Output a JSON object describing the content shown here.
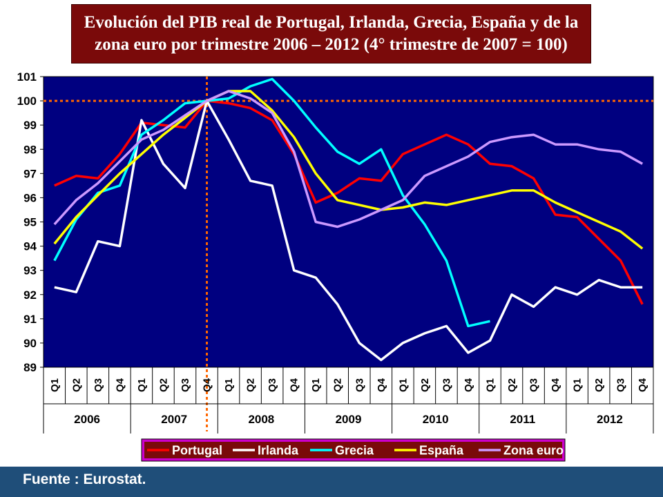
{
  "title": {
    "line1": "Evolución del PIB real de Portugal, Irlanda, Grecia, España y de la",
    "line2": "zona euro por trimestre 2006 – 2012 (4° trimestre de 2007 = 100)"
  },
  "footer": {
    "source": "Fuente : Eurostat."
  },
  "chart_data": {
    "type": "line",
    "title": "Evolución del PIB real de Portugal, Irlanda, Grecia, España y de la zona euro por trimestre 2006 – 2012 (4° trimestre de 2007 = 100)",
    "xlabel": "",
    "ylabel": "",
    "ylim": [
      89,
      101
    ],
    "yticks": [
      89,
      90,
      91,
      92,
      93,
      94,
      95,
      96,
      97,
      98,
      99,
      100,
      101
    ],
    "x": [
      "Q1",
      "Q2",
      "Q3",
      "Q4",
      "Q1",
      "Q2",
      "Q3",
      "Q4",
      "Q1",
      "Q2",
      "Q3",
      "Q4",
      "Q1",
      "Q2",
      "Q3",
      "Q4",
      "Q1",
      "Q2",
      "Q3",
      "Q4",
      "Q1",
      "Q2",
      "Q3",
      "Q4",
      "Q1",
      "Q2",
      "Q3",
      "Q4"
    ],
    "years": [
      "2006",
      "2007",
      "2008",
      "2009",
      "2010",
      "2011",
      "2012"
    ],
    "plot_background": "#000080",
    "grid": false,
    "reference_lines": {
      "y": 100,
      "x_year": "2007",
      "x_quarter": "Q4",
      "color": "#ff6600",
      "style": "dotted"
    },
    "legend_position": "bottom",
    "series": [
      {
        "name": "Portugal",
        "color": "#ff0000",
        "values": [
          96.5,
          96.9,
          96.8,
          97.8,
          99.1,
          99.0,
          98.9,
          100.0,
          99.9,
          99.7,
          99.2,
          97.8,
          95.8,
          96.2,
          96.8,
          96.7,
          97.8,
          98.2,
          98.6,
          98.2,
          97.4,
          97.3,
          96.8,
          95.3,
          95.2,
          94.3,
          93.4,
          91.6
        ]
      },
      {
        "name": "Irlanda",
        "color": "#ffffff",
        "values": [
          92.3,
          92.1,
          94.2,
          94.0,
          99.2,
          97.4,
          96.4,
          100.0,
          98.4,
          96.7,
          96.5,
          93.0,
          92.7,
          91.6,
          90.0,
          89.3,
          90.0,
          90.4,
          90.7,
          89.6,
          90.1,
          92.0,
          91.5,
          92.3,
          92.0,
          92.6,
          92.3,
          92.3
        ]
      },
      {
        "name": "Grecia",
        "color": "#00ffff",
        "values": [
          93.4,
          95.1,
          96.2,
          96.5,
          98.6,
          99.2,
          99.9,
          100.0,
          100.1,
          100.6,
          100.9,
          100.0,
          98.9,
          97.9,
          97.4,
          98.0,
          96.1,
          94.9,
          93.4,
          90.7,
          90.9,
          null,
          null,
          null,
          null,
          null,
          null,
          null
        ]
      },
      {
        "name": "España",
        "color": "#ffff00",
        "values": [
          94.1,
          95.2,
          96.1,
          97.0,
          97.8,
          98.6,
          99.3,
          100.0,
          100.4,
          100.4,
          99.6,
          98.5,
          97.0,
          95.9,
          95.7,
          95.5,
          95.6,
          95.8,
          95.7,
          95.9,
          96.1,
          96.3,
          96.3,
          95.8,
          95.4,
          95.0,
          94.6,
          93.9
        ]
      },
      {
        "name": "Zona euro",
        "color": "#cc99ff",
        "values": [
          94.9,
          95.9,
          96.6,
          97.5,
          98.4,
          98.8,
          99.4,
          100.0,
          100.4,
          100.1,
          99.5,
          97.9,
          95.0,
          94.8,
          95.1,
          95.5,
          95.9,
          96.9,
          97.3,
          97.7,
          98.3,
          98.5,
          98.6,
          98.2,
          98.2,
          98.0,
          97.9,
          97.4
        ]
      }
    ]
  }
}
